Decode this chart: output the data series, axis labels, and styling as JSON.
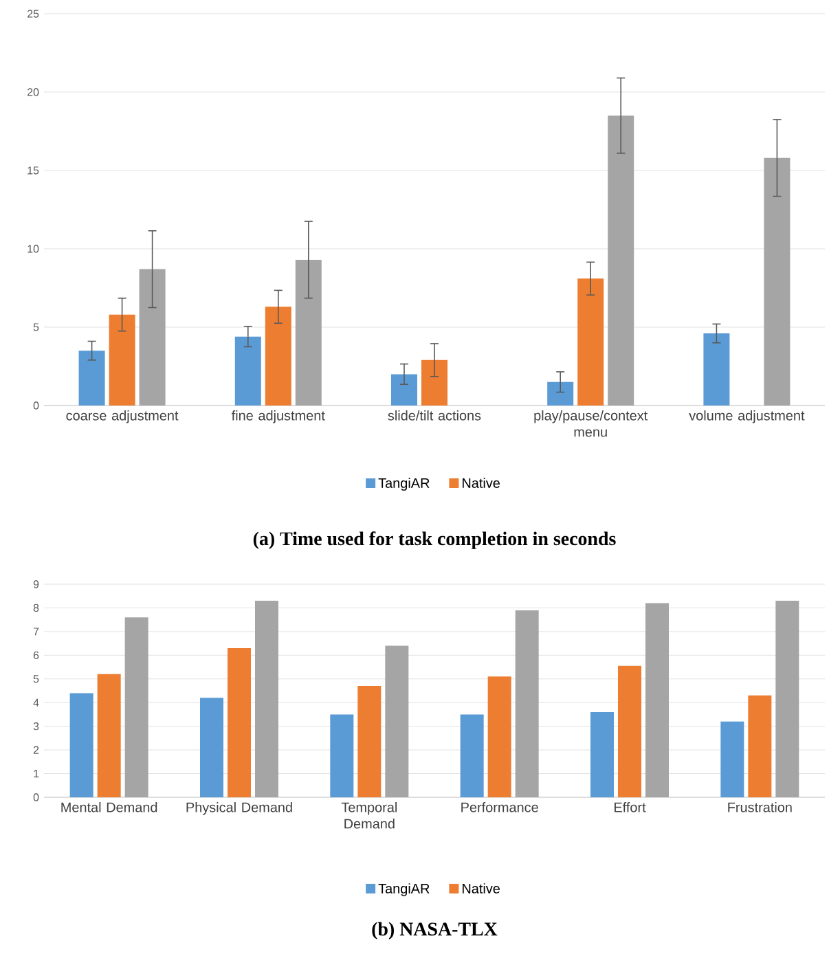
{
  "chart_data": [
    {
      "type": "bar",
      "title": "(a) Time used for task completion in seconds",
      "categories": [
        "coarse adjustment",
        "fine adjustment",
        "slide/tilt actions",
        "play/pause/context menu",
        "volume adjustment"
      ],
      "series": [
        {
          "name": "TangiAR",
          "color": "#5b9bd5",
          "values": [
            3.5,
            4.4,
            2.0,
            1.5,
            4.6
          ],
          "errors": [
            0.6,
            0.65,
            0.65,
            0.65,
            0.6
          ]
        },
        {
          "name": "Native",
          "color": "#ed7d31",
          "values": [
            5.8,
            6.3,
            2.9,
            8.1,
            null
          ],
          "errors": [
            1.05,
            1.05,
            1.05,
            1.05,
            null
          ]
        },
        {
          "color": "#a5a5a5",
          "values": [
            8.7,
            9.3,
            null,
            18.5,
            15.8
          ],
          "errors": [
            2.45,
            2.45,
            null,
            2.4,
            2.45
          ]
        }
      ],
      "ylim": [
        0,
        25
      ],
      "yticks": [
        0,
        5,
        10,
        15,
        20,
        25
      ],
      "grid": "y",
      "legend": "bottom"
    },
    {
      "type": "bar",
      "title": "(b) NASA-TLX",
      "categories": [
        "Mental Demand",
        "Physical Demand",
        "Temporal Demand",
        "Performance",
        "Effort",
        "Frustration"
      ],
      "series": [
        {
          "name": "TangiAR",
          "color": "#5b9bd5",
          "values": [
            4.4,
            4.2,
            3.5,
            3.5,
            3.6,
            3.2
          ]
        },
        {
          "name": "Native",
          "color": "#ed7d31",
          "values": [
            5.2,
            6.3,
            4.7,
            5.1,
            5.55,
            4.3
          ]
        },
        {
          "color": "#a5a5a5",
          "values": [
            7.6,
            8.3,
            6.4,
            7.9,
            8.2,
            8.3
          ]
        }
      ],
      "ylim": [
        0,
        9
      ],
      "yticks": [
        0,
        1,
        2,
        3,
        4,
        5,
        6,
        7,
        8,
        9
      ],
      "grid": "y",
      "legend": "bottom"
    }
  ]
}
